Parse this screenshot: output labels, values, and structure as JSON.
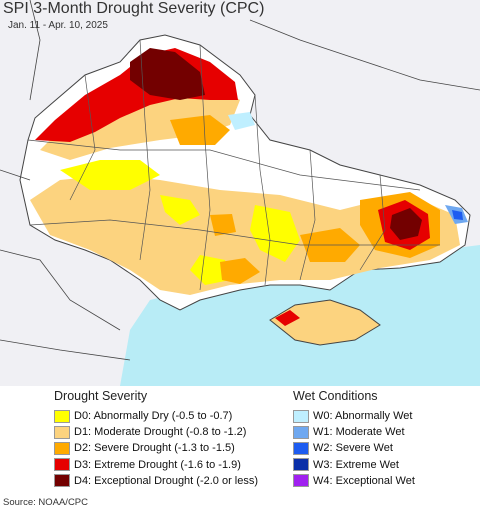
{
  "header": {
    "title": "SPI 3-Month Drought Severity (CPC)",
    "date_range": "Jan. 11 - Apr. 10, 2025"
  },
  "map": {
    "land_color": "#ffffff",
    "outside_color": "#f0f0f4",
    "sea_color": "#b8ecf6",
    "border_color": "#444444"
  },
  "legend": {
    "drought": {
      "heading": "Drought Severity",
      "items": [
        {
          "label": "D0: Abnormally Dry (-0.5 to -0.7)",
          "color": "#ffff00"
        },
        {
          "label": "D1: Moderate Drought (-0.8 to -1.2)",
          "color": "#fcd37f"
        },
        {
          "label": "D2: Severe Drought (-1.3 to -1.5)",
          "color": "#ffaa00"
        },
        {
          "label": "D3: Extreme Drought (-1.6 to -1.9)",
          "color": "#e60000"
        },
        {
          "label": "D4: Exceptional Drought (-2.0 or less)",
          "color": "#730000"
        }
      ]
    },
    "wet": {
      "heading": "Wet Conditions",
      "items": [
        {
          "label": "W0: Abnormally Wet",
          "color": "#bfefff"
        },
        {
          "label": "W1: Moderate Wet",
          "color": "#6fa8f0"
        },
        {
          "label": "W2: Severe Wet",
          "color": "#1d5cf0"
        },
        {
          "label": "W3: Extreme Wet",
          "color": "#0a2fa8"
        },
        {
          "label": "W4: Exceptional Wet",
          "color": "#a020f0"
        }
      ]
    }
  },
  "footer": {
    "source": "Source: NOAA/CPC"
  }
}
